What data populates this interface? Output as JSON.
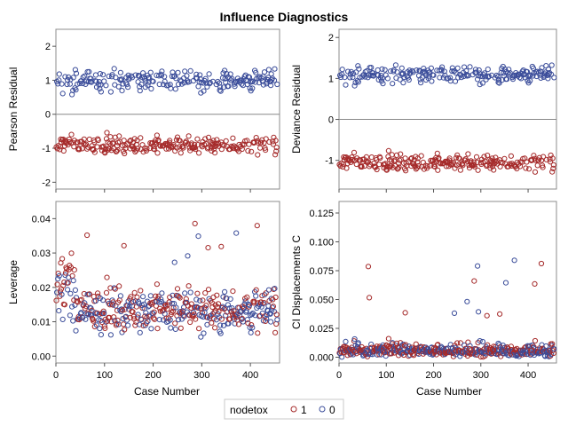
{
  "chart_data": {
    "type": "scatter",
    "title": "Influence Diagnostics",
    "shared_xlabel": "Case Number",
    "x_range": [
      0,
      460
    ],
    "x_ticks": [
      "0",
      "100",
      "200",
      "300",
      "400"
    ],
    "groups": [
      {
        "name": "1",
        "color": "#a52a2a"
      },
      {
        "name": "0",
        "color": "#3b4d9a"
      }
    ],
    "legend": {
      "title": "nodetox",
      "placement": "bottom-center",
      "entries": [
        "1",
        "0"
      ]
    },
    "panels": [
      {
        "id": "pearson-residual",
        "ylabel": "Pearson Residual",
        "ylim": [
          -2.2,
          2.5
        ],
        "yticks": [
          -2,
          -1,
          0,
          1,
          2
        ],
        "reference_line": 0,
        "series": [
          {
            "group": "1",
            "summary": "about 230 cases; values between -1.8 and -0.35, mostly around -0.9",
            "range": [
              -1.8,
              -0.35
            ],
            "center": -0.9
          },
          {
            "group": "0",
            "summary": "about 225 cases; values between 0.55 and 2.35, mostly around 1.0",
            "range": [
              0.55,
              2.35
            ],
            "center": 1.0
          }
        ]
      },
      {
        "id": "deviance-residual",
        "ylabel": "Deviance Residual",
        "ylim": [
          -1.7,
          2.2
        ],
        "yticks": [
          -1,
          0,
          1,
          2
        ],
        "reference_line": 0,
        "series": [
          {
            "group": "1",
            "summary": "about 230 cases; values between -1.65 and -0.5, mostly around -1.05",
            "range": [
              -1.65,
              -0.5
            ],
            "center": -1.05
          },
          {
            "group": "0",
            "summary": "about 225 cases; values between 0.75 and 1.95, mostly around 1.1",
            "range": [
              0.75,
              1.95
            ],
            "center": 1.1
          }
        ]
      },
      {
        "id": "leverage",
        "ylabel": "Leverage",
        "ylim": [
          -0.002,
          0.045
        ],
        "yticks": [
          0.0,
          0.01,
          0.02,
          0.03,
          0.04
        ],
        "tick_labels": [
          "0.00",
          "0.01",
          "0.02",
          "0.03",
          "0.04"
        ],
        "series": [
          {
            "group": "1",
            "summary": "about 230 cases; values between 0.004 and 0.043, several early cases near 0.035-0.043",
            "range": [
              0.004,
              0.043
            ],
            "center": 0.014
          },
          {
            "group": "0",
            "summary": "about 225 cases; values between 0.005 and 0.036",
            "range": [
              0.005,
              0.036
            ],
            "center": 0.013
          }
        ]
      },
      {
        "id": "ci-displacements-c",
        "ylabel": "CI Displacements C",
        "ylim": [
          -0.005,
          0.135
        ],
        "yticks": [
          0.0,
          0.025,
          0.05,
          0.075,
          0.1,
          0.125
        ],
        "tick_labels": [
          "0.000",
          "0.025",
          "0.050",
          "0.075",
          "0.100",
          "0.125"
        ],
        "series": [
          {
            "group": "1",
            "summary": "about 230 cases; mostly 0.000-0.035, a few up to about 0.082",
            "range": [
              0.0,
              0.082
            ],
            "center": 0.01
          },
          {
            "group": "0",
            "summary": "about 225 cases; mostly 0.000-0.035, outliers near 0.080, 0.088 and 0.130",
            "range": [
              0.0,
              0.13
            ],
            "center": 0.01
          }
        ]
      }
    ]
  }
}
